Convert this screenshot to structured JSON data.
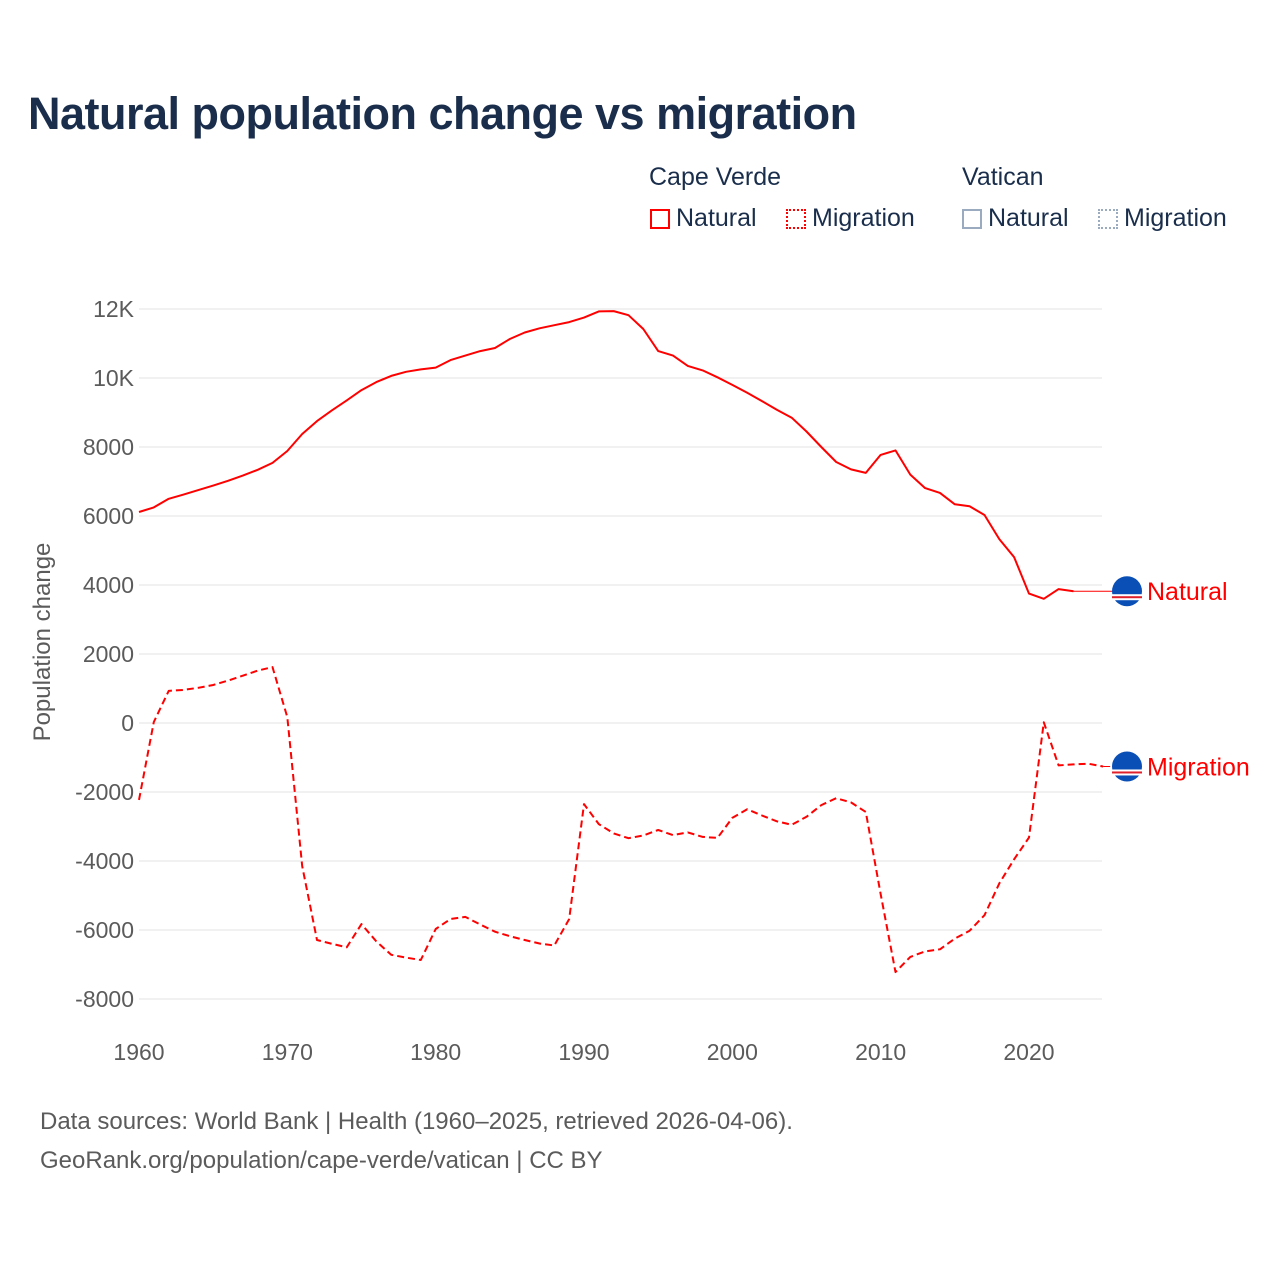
{
  "title": "Natural population change vs migration",
  "legend": {
    "groups": [
      {
        "name": "Cape Verde",
        "color": "#ff0000",
        "items": [
          "Natural",
          "Migration"
        ]
      },
      {
        "name": "Vatican",
        "color": "#9aabc0",
        "items": [
          "Natural",
          "Migration"
        ]
      }
    ]
  },
  "footer": {
    "line1": "Data sources: World Bank | Health (1960–2025, retrieved 2026-04-06).",
    "line2": "GeoRank.org/population/cape-verde/vatican | CC BY"
  },
  "chart_data": {
    "type": "line",
    "title": "Natural population change vs migration",
    "xlabel": "",
    "ylabel": "Population change",
    "xlim": [
      1960,
      2025
    ],
    "ylim": [
      -8000,
      12000
    ],
    "x_ticks": [
      "1960",
      "1970",
      "1980",
      "1990",
      "2000",
      "2010",
      "2020"
    ],
    "y_ticks": [
      {
        "value": 12000,
        "label": "12K"
      },
      {
        "value": 10000,
        "label": "10K"
      },
      {
        "value": 8000,
        "label": "8000"
      },
      {
        "value": 6000,
        "label": "6000"
      },
      {
        "value": 4000,
        "label": "4000"
      },
      {
        "value": 2000,
        "label": "2000"
      },
      {
        "value": 0,
        "label": "0"
      },
      {
        "value": -2000,
        "label": "-2000"
      },
      {
        "value": -4000,
        "label": "-4000"
      },
      {
        "value": -6000,
        "label": "-6000"
      },
      {
        "value": -8000,
        "label": "-8000"
      }
    ],
    "grid": true,
    "series": [
      {
        "name": "Natural",
        "country": "Cape Verde",
        "style": "solid",
        "color": "#ff0000",
        "end_label": "Natural",
        "x_start": 1960,
        "values": [
          6116,
          6250,
          6500,
          6620,
          6750,
          6880,
          7020,
          7170,
          7340,
          7540,
          7884,
          8377,
          8750,
          9060,
          9350,
          9650,
          9880,
          10060,
          10180,
          10250,
          10300,
          10520,
          10650,
          10780,
          10870,
          11130,
          11320,
          11440,
          11530,
          11620,
          11750,
          11930,
          11940,
          11820,
          11420,
          10780,
          10650,
          10350,
          10220,
          10020,
          9800,
          9570,
          9330,
          9080,
          8850,
          8450,
          8000,
          7565,
          7350,
          7250,
          7770,
          7900,
          7200,
          6810,
          6670,
          6340,
          6280,
          6030,
          5330,
          4810,
          3750,
          3600,
          3880,
          3820
        ]
      },
      {
        "name": "Migration",
        "country": "Cape Verde",
        "style": "dashed",
        "color": "#ff0000",
        "end_label": "Migration",
        "x_start": 1960,
        "values": [
          -2230,
          30,
          930,
          960,
          1020,
          1100,
          1230,
          1370,
          1520,
          1620,
          170,
          -4150,
          -6290,
          -6400,
          -6500,
          -5830,
          -6330,
          -6720,
          -6800,
          -6870,
          -5970,
          -5680,
          -5620,
          -5840,
          -6050,
          -6180,
          -6290,
          -6390,
          -6450,
          -5680,
          -2350,
          -2930,
          -3200,
          -3340,
          -3260,
          -3100,
          -3250,
          -3170,
          -3300,
          -3330,
          -2750,
          -2500,
          -2680,
          -2850,
          -2950,
          -2720,
          -2380,
          -2180,
          -2300,
          -2580,
          -4950,
          -7220,
          -6780,
          -6620,
          -6560,
          -6250,
          -6020,
          -5570,
          -4650,
          -3950,
          -3320,
          20,
          -1230,
          -1200,
          -1180,
          -1260
        ]
      }
    ]
  }
}
